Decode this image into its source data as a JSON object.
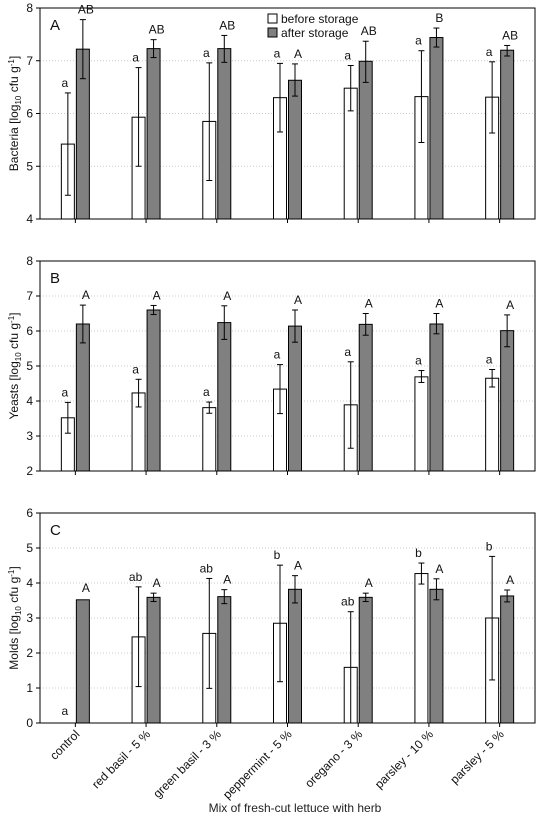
{
  "figure": {
    "xlabel": "Mix of fresh-cut lettuce with herb",
    "categories": [
      "control",
      "red basil - 5 %",
      "green basil - 3 %",
      "peppermint - 5 %",
      "oregano - 3 %",
      "parsley - 10 %",
      "parsley - 5 %"
    ],
    "legend": {
      "before": "before storage",
      "after": "after storage"
    }
  },
  "chart_data": [
    {
      "type": "bar",
      "panel_letter": "A",
      "ylabel_main": "Bacteria [log",
      "ylabel_sub": "10",
      "ylabel_unit": " cfu g",
      "ylabel_sup": "-1",
      "ylabel_end": "]",
      "ylim": [
        4,
        8
      ],
      "yticks": [
        "4",
        "5",
        "6",
        "7",
        "8"
      ],
      "grid": true,
      "legend": "top-right",
      "categories": [
        "control",
        "red basil - 5 %",
        "green basil - 3 %",
        "peppermint - 5 %",
        "oregano - 3 %",
        "parsley - 10 %",
        "parsley - 5 %"
      ],
      "series": [
        {
          "name": "before storage",
          "color": "#ffffff",
          "values": [
            5.42,
            5.93,
            5.85,
            6.3,
            6.48,
            6.32,
            6.31
          ],
          "err_low": [
            4.45,
            5.0,
            4.73,
            5.65,
            6.05,
            5.45,
            5.63
          ],
          "err_high": [
            6.39,
            6.87,
            6.96,
            6.95,
            6.91,
            7.19,
            6.98
          ],
          "letters": [
            "a",
            "a",
            "a",
            "a",
            "a",
            "a",
            "a"
          ]
        },
        {
          "name": "after storage",
          "color": "#808080",
          "values": [
            7.22,
            7.23,
            7.23,
            6.63,
            6.99,
            7.44,
            7.2
          ],
          "err_low": [
            6.66,
            7.06,
            6.97,
            6.33,
            6.59,
            7.26,
            7.09
          ],
          "err_high": [
            7.78,
            7.4,
            7.48,
            6.94,
            7.37,
            7.62,
            7.29
          ],
          "letters": [
            "AB",
            "AB",
            "AB",
            "A",
            "AB",
            "B",
            "AB"
          ]
        }
      ]
    },
    {
      "type": "bar",
      "panel_letter": "B",
      "ylabel_main": "Yeasts [log",
      "ylabel_sub": "10",
      "ylabel_unit": " cfu g",
      "ylabel_sup": "-1",
      "ylabel_end": "]",
      "ylim": [
        2,
        8
      ],
      "yticks": [
        "2",
        "3",
        "4",
        "5",
        "6",
        "7",
        "8"
      ],
      "grid": true,
      "categories": [
        "control",
        "red basil - 5 %",
        "green basil - 3 %",
        "peppermint - 5 %",
        "oregano - 3 %",
        "parsley - 10 %",
        "parsley - 5 %"
      ],
      "series": [
        {
          "name": "before storage",
          "color": "#ffffff",
          "values": [
            3.52,
            4.23,
            3.81,
            4.34,
            3.89,
            4.69,
            4.65
          ],
          "err_low": [
            3.08,
            3.83,
            3.65,
            3.64,
            2.65,
            4.53,
            4.4
          ],
          "err_high": [
            3.96,
            4.62,
            3.97,
            5.04,
            5.12,
            4.87,
            4.9
          ],
          "letters": [
            "a",
            "a",
            "a",
            "a",
            "a",
            "a",
            "a"
          ]
        },
        {
          "name": "after storage",
          "color": "#808080",
          "values": [
            6.2,
            6.6,
            6.24,
            6.14,
            6.19,
            6.2,
            6.01
          ],
          "err_low": [
            5.66,
            6.47,
            5.76,
            5.68,
            5.88,
            5.92,
            5.55
          ],
          "err_high": [
            6.74,
            6.73,
            6.72,
            6.6,
            6.5,
            6.5,
            6.46
          ],
          "letters": [
            "A",
            "A",
            "A",
            "A",
            "A",
            "A",
            "A"
          ]
        }
      ]
    },
    {
      "type": "bar",
      "panel_letter": "C",
      "ylabel_main": "Molds [log",
      "ylabel_sub": "10",
      "ylabel_unit": " cfu g",
      "ylabel_sup": "-1",
      "ylabel_end": "]",
      "ylim": [
        0,
        6
      ],
      "yticks": [
        "0",
        "1",
        "2",
        "3",
        "4",
        "5",
        "6"
      ],
      "grid": true,
      "categories": [
        "control",
        "red basil - 5 %",
        "green basil - 3 %",
        "peppermint - 5 %",
        "oregano - 3 %",
        "parsley - 10 %",
        "parsley - 5 %"
      ],
      "series": [
        {
          "name": "before storage",
          "color": "#ffffff",
          "values": [
            0,
            2.46,
            2.56,
            2.85,
            1.59,
            4.27,
            3.0
          ],
          "err_low": [
            null,
            1.04,
            0.99,
            1.18,
            0.0,
            3.97,
            1.23
          ],
          "err_high": [
            null,
            3.89,
            4.13,
            4.51,
            3.18,
            4.57,
            4.76
          ],
          "letters": [
            "a",
            "ab",
            "ab",
            "b",
            "ab",
            "b",
            "b"
          ]
        },
        {
          "name": "after storage",
          "color": "#808080",
          "values": [
            3.52,
            3.59,
            3.61,
            3.82,
            3.59,
            3.82,
            3.63
          ],
          "err_low": [
            null,
            3.47,
            3.41,
            3.43,
            3.47,
            3.52,
            3.46
          ],
          "err_high": [
            null,
            3.71,
            3.81,
            4.21,
            3.71,
            4.12,
            3.8
          ],
          "letters": [
            "A",
            "A",
            "A",
            "A",
            "A",
            "A",
            "A"
          ]
        }
      ]
    }
  ]
}
